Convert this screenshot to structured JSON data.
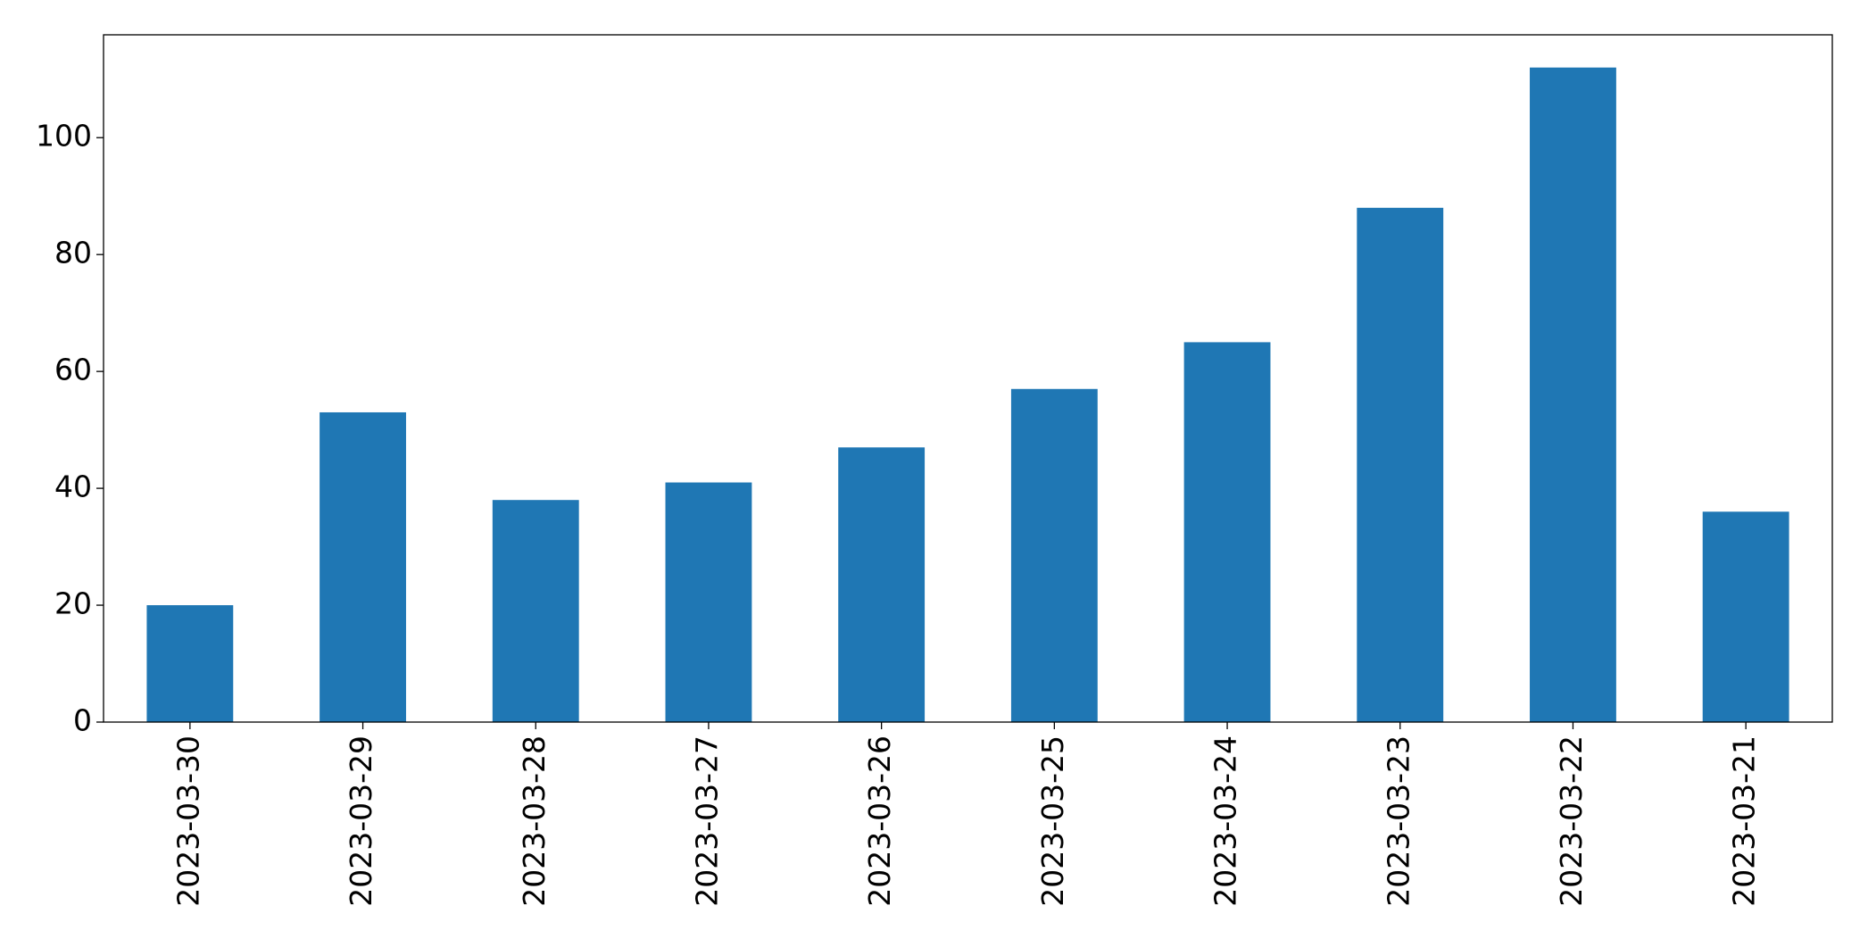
{
  "chart_data": {
    "type": "bar",
    "categories": [
      "2023-03-30",
      "2023-03-29",
      "2023-03-28",
      "2023-03-27",
      "2023-03-26",
      "2023-03-25",
      "2023-03-24",
      "2023-03-23",
      "2023-03-22",
      "2023-03-21"
    ],
    "values": [
      20,
      53,
      38,
      41,
      47,
      57,
      65,
      88,
      112,
      36
    ],
    "color": "#1f77b4",
    "ylim": [
      0,
      117.6
    ],
    "yticks": [
      0,
      20,
      40,
      60,
      80,
      100
    ],
    "grid": false
  }
}
